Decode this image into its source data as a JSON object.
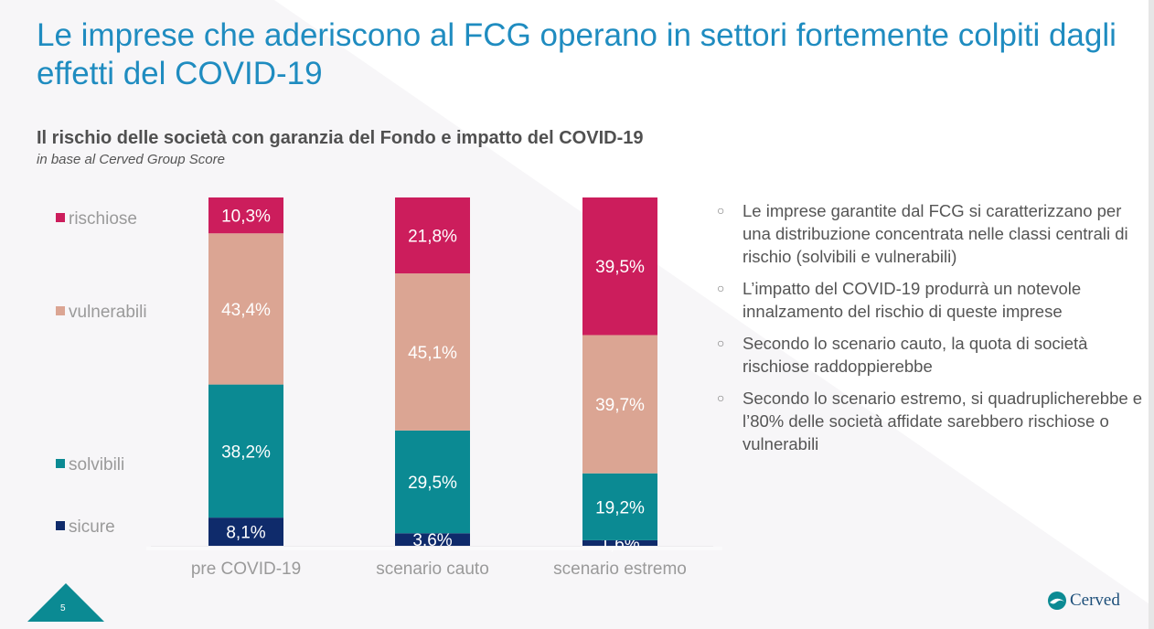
{
  "slide": {
    "title": "Le imprese che aderiscono al FCG operano in settori fortemente colpiti dagli effetti del COVID-19",
    "page_number": "5",
    "logo_text": "Cerved"
  },
  "bullets": [
    "Le imprese garantite dal FCG si caratterizzano per una distribuzione concentrata nelle classi centrali di rischio (solvibili e vulnerabili)",
    "L’impatto del COVID-19 produrrà un notevole innalzamento del rischio di queste imprese",
    "Secondo lo scenario cauto, la quota di società rischiose raddoppierebbe",
    "Secondo lo scenario estremo, si quadruplicherebbe e l’80% delle società affidate sarebbero rischiose o vulnerabili"
  ],
  "chart_data": {
    "type": "bar",
    "stacked": true,
    "title": "Il rischio delle società con garanzia del Fondo e impatto del COVID-19",
    "subtitle": "in base al Cerved Group Score",
    "xlabel": "",
    "ylabel": "",
    "ylim": [
      0,
      100
    ],
    "grid": false,
    "legend_position": "left",
    "categories": [
      "pre COVID-19",
      "scenario cauto",
      "scenario estremo"
    ],
    "series": [
      {
        "name": "sicure",
        "color": "#0f2b6b",
        "values": [
          8.1,
          3.6,
          1.6
        ],
        "labels": [
          "8,1%",
          "3,6%",
          "1,6%"
        ]
      },
      {
        "name": "solvibili",
        "color": "#0b8a93",
        "values": [
          38.2,
          29.5,
          19.2
        ],
        "labels": [
          "38,2%",
          "29,5%",
          "19,2%"
        ]
      },
      {
        "name": "vulnerabili",
        "color": "#dba593",
        "values": [
          43.4,
          45.1,
          39.7
        ],
        "labels": [
          "43,4%",
          "45,1%",
          "39,7%"
        ]
      },
      {
        "name": "rischiose",
        "color": "#cc1d5c",
        "values": [
          10.3,
          21.8,
          39.5
        ],
        "labels": [
          "10,3%",
          "21,8%",
          "39,5%"
        ]
      }
    ]
  }
}
